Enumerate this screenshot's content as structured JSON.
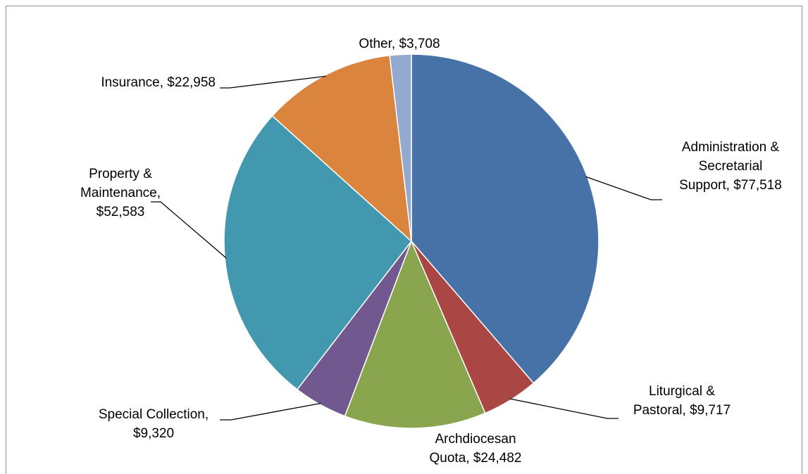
{
  "chart_data": {
    "type": "pie",
    "title": "",
    "categories": [
      "Administration & Secretarial Support",
      "Liturgical & Pastoral",
      "Archdiocesan Quota",
      "Special Collection",
      "Property & Maintenance",
      "Insurance",
      "Other"
    ],
    "values": [
      77518,
      9717,
      24482,
      9320,
      52583,
      22958,
      3708
    ],
    "colors": [
      "#4672a8",
      "#aa4643",
      "#89a54e",
      "#71588f",
      "#4198af",
      "#db843d",
      "#93a9cf"
    ],
    "start_angle_deg": 0,
    "direction": "clockwise",
    "legend": "none",
    "data_labels": [
      [
        "Administration &",
        "Secretarial",
        "Support, $77,518"
      ],
      [
        "Liturgical &",
        "Pastoral, $9,717"
      ],
      [
        "Archdiocesan",
        "Quota, $24,482"
      ],
      [
        "Special Collection,",
        "$9,320"
      ],
      [
        "Property &",
        "Maintenance,",
        "$52,583"
      ],
      [
        "Insurance, $22,958"
      ],
      [
        "Other, $3,708"
      ]
    ]
  }
}
